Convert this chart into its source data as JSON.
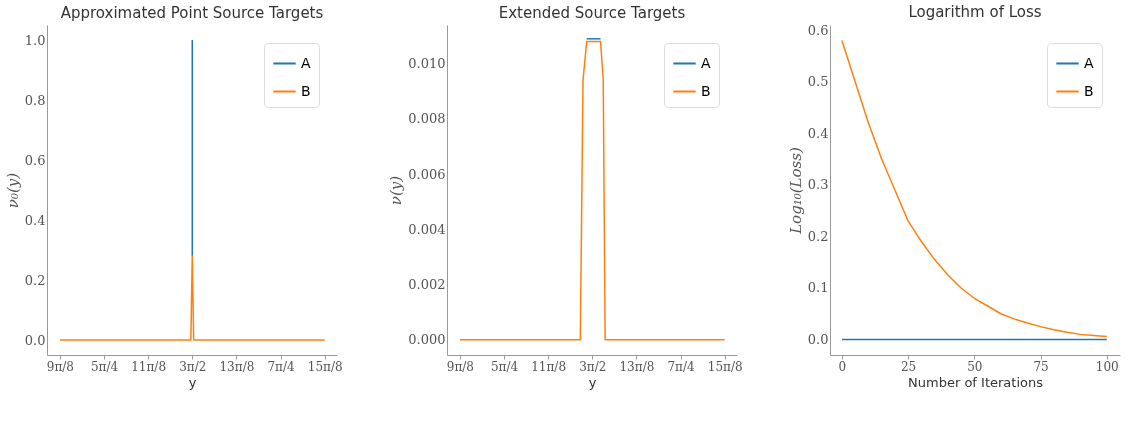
{
  "chart_data": [
    {
      "type": "line",
      "title": "Approximated Point Source Targets",
      "xlabel": "y",
      "ylabel": "ν₀(y)",
      "legend": "top right",
      "grid": false,
      "line_style": "solid",
      "xlim": [
        3.42,
        6.0
      ],
      "ylim": [
        -0.05,
        1.05
      ],
      "xticks": [
        {
          "value": 3.5343,
          "label": "9π/8"
        },
        {
          "value": 3.927,
          "label": "5π/4"
        },
        {
          "value": 4.3197,
          "label": "11π/8"
        },
        {
          "value": 4.7124,
          "label": "3π/2"
        },
        {
          "value": 5.1051,
          "label": "13π/8"
        },
        {
          "value": 5.4978,
          "label": "7π/4"
        },
        {
          "value": 5.8905,
          "label": "15π/8"
        }
      ],
      "yticks": [
        {
          "value": 0,
          "label": "0.0"
        },
        {
          "value": 0.2,
          "label": "0.2"
        },
        {
          "value": 0.4,
          "label": "0.4"
        },
        {
          "value": 0.6,
          "label": "0.6"
        },
        {
          "value": 0.8,
          "label": "0.8"
        },
        {
          "value": 1,
          "label": "1.0"
        }
      ],
      "series": [
        {
          "name": "A",
          "color": "#1f77b4",
          "x": [
            4.7124,
            4.7124
          ],
          "values": [
            0.28,
            1.0
          ]
        },
        {
          "name": "B",
          "color": "#ff7f0e",
          "x": [
            3.5343,
            4.7,
            4.7124,
            4.725,
            5.8905
          ],
          "values": [
            0,
            0,
            0.28,
            0,
            0
          ]
        }
      ]
    },
    {
      "type": "line",
      "title": "Extended Source Targets",
      "xlabel": "y",
      "ylabel": "ν(y)",
      "legend": "top right",
      "grid": false,
      "line_style": "solid",
      "xlim": [
        3.42,
        6.0
      ],
      "ylim": [
        -0.00055,
        0.0114
      ],
      "xticks": [
        {
          "value": 3.5343,
          "label": "9π/8"
        },
        {
          "value": 3.927,
          "label": "5π/4"
        },
        {
          "value": 4.3197,
          "label": "11π/8"
        },
        {
          "value": 4.7124,
          "label": "3π/2"
        },
        {
          "value": 5.1051,
          "label": "13π/8"
        },
        {
          "value": 5.4978,
          "label": "7π/4"
        },
        {
          "value": 5.8905,
          "label": "15π/8"
        }
      ],
      "yticks": [
        {
          "value": 0,
          "label": "0.000"
        },
        {
          "value": 0.002,
          "label": "0.002"
        },
        {
          "value": 0.004,
          "label": "0.004"
        },
        {
          "value": 0.006,
          "label": "0.006"
        },
        {
          "value": 0.008,
          "label": "0.008"
        },
        {
          "value": 0.01,
          "label": "0.010"
        }
      ],
      "series": [
        {
          "name": "A",
          "color": "#1f77b4",
          "x": [
            4.663,
            4.786
          ],
          "values": [
            0.0109,
            0.0109
          ]
        },
        {
          "name": "B",
          "color": "#ff7f0e",
          "x": [
            3.5343,
            4.606,
            4.63,
            4.663,
            4.786,
            4.81,
            4.827,
            5.8905
          ],
          "values": [
            0,
            0,
            0.0094,
            0.0108,
            0.0108,
            0.0094,
            0,
            0
          ]
        }
      ]
    },
    {
      "type": "line",
      "title": "Logarithm of Loss",
      "xlabel": "Number of Iterations",
      "ylabel": "Log₁₀(Loss)",
      "legend": "top right",
      "grid": false,
      "line_style": "solid",
      "xlim": [
        -4.5,
        105
      ],
      "ylim": [
        -0.03,
        0.61
      ],
      "xticks": [
        0,
        25,
        50,
        75,
        100
      ],
      "yticks": [
        {
          "value": 0,
          "label": "0.0"
        },
        {
          "value": 0.1,
          "label": "0.1"
        },
        {
          "value": 0.2,
          "label": "0.2"
        },
        {
          "value": 0.3,
          "label": "0.3"
        },
        {
          "value": 0.4,
          "label": "0.4"
        },
        {
          "value": 0.5,
          "label": "0.5"
        },
        {
          "value": 0.6,
          "label": "0.6"
        }
      ],
      "series": [
        {
          "name": "A",
          "color": "#1f77b4",
          "x": [
            0,
            100
          ],
          "values": [
            0,
            0
          ]
        },
        {
          "name": "B",
          "color": "#ff7f0e",
          "x": [
            0,
            5,
            10,
            15,
            20,
            25,
            30,
            35,
            40,
            45,
            50,
            55,
            60,
            65,
            70,
            75,
            80,
            85,
            90,
            95,
            100
          ],
          "values": [
            0.58,
            0.5,
            0.42,
            0.35,
            0.29,
            0.23,
            0.19,
            0.155,
            0.125,
            0.1,
            0.08,
            0.065,
            0.05,
            0.04,
            0.032,
            0.025,
            0.019,
            0.014,
            0.01,
            0.008,
            0.006
          ]
        }
      ]
    }
  ]
}
